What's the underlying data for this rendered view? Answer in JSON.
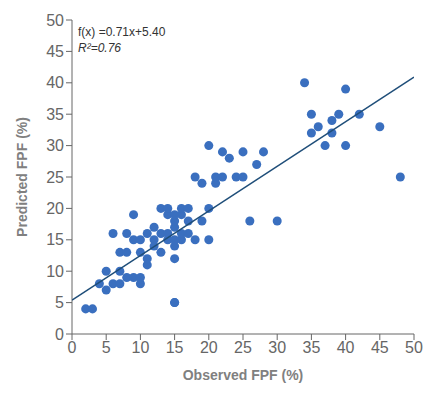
{
  "chart_data": {
    "type": "scatter",
    "x_label": "Observed FPF (%)",
    "y_label": "Predicted FPF (%)",
    "xlim": [
      0,
      50
    ],
    "ylim": [
      0,
      50
    ],
    "xticks": [
      0,
      5,
      10,
      15,
      20,
      25,
      30,
      35,
      40,
      45,
      50
    ],
    "yticks": [
      0,
      5,
      10,
      15,
      20,
      25,
      30,
      35,
      40,
      45,
      50
    ],
    "grid": false,
    "annotations": [
      "f(x) =0.71x+5.40",
      "R²=0.76"
    ],
    "series": [
      {
        "type": "scatter",
        "color": "#3A6FBF",
        "x": [
          2,
          3,
          4,
          5,
          5,
          6,
          6,
          7,
          7,
          7,
          8,
          8,
          8,
          9,
          9,
          9,
          10,
          10,
          10,
          10,
          11,
          11,
          11,
          12,
          12,
          12,
          13,
          13,
          13,
          14,
          14,
          14,
          14,
          15,
          15,
          15,
          15,
          15,
          15,
          15,
          15,
          16,
          16,
          16,
          16,
          17,
          17,
          17,
          18,
          18,
          19,
          19,
          20,
          20,
          20,
          21,
          21,
          22,
          22,
          23,
          24,
          25,
          25,
          26,
          27,
          28,
          30,
          34,
          35,
          35,
          36,
          37,
          38,
          38,
          39,
          40,
          40,
          42,
          45,
          48
        ],
        "values": [
          4,
          4,
          8,
          7,
          10,
          8,
          16,
          8,
          10,
          13,
          9,
          13,
          16,
          9,
          15,
          19,
          8,
          9,
          13,
          15,
          11,
          12,
          16,
          14,
          15,
          17,
          13,
          16,
          20,
          15,
          16,
          19,
          20,
          5,
          5,
          12,
          14,
          15,
          17,
          18,
          19,
          15,
          16,
          19,
          20,
          16,
          18,
          20,
          15,
          25,
          18,
          24,
          15,
          20,
          30,
          24,
          25,
          25,
          29,
          28,
          25,
          25,
          29,
          18,
          27,
          29,
          18,
          40,
          32,
          35,
          33,
          30,
          32,
          34,
          35,
          30,
          39,
          35,
          33,
          25
        ]
      },
      {
        "type": "line",
        "color": "#1F4E79",
        "x": [
          0,
          50
        ],
        "values": [
          5.4,
          40.9
        ]
      }
    ]
  }
}
